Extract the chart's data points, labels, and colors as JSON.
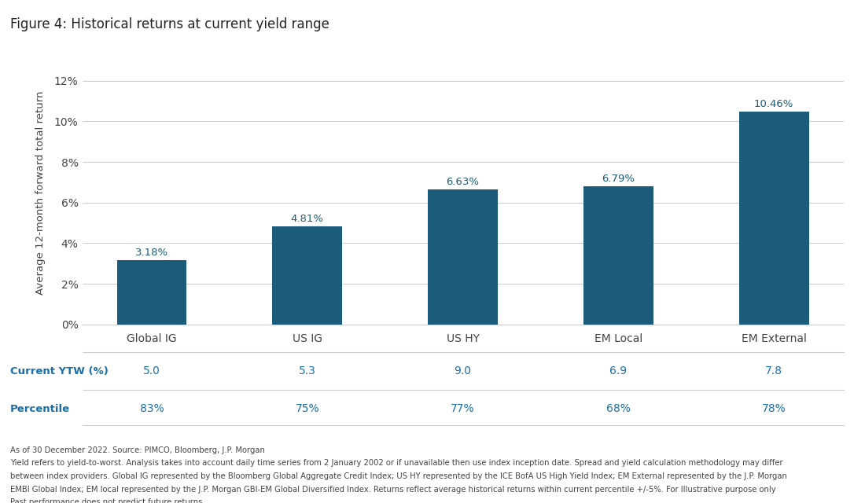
{
  "title": "Figure 4: Historical returns at current yield range",
  "categories": [
    "Global IG",
    "US IG",
    "US HY",
    "EM Local",
    "EM External"
  ],
  "values": [
    3.18,
    4.81,
    6.63,
    6.79,
    10.46
  ],
  "bar_color": "#1b5c7b",
  "ylabel": "Average 12-month forward total return",
  "ylim": [
    0,
    13
  ],
  "yticks": [
    0,
    2,
    4,
    6,
    8,
    10,
    12
  ],
  "ytick_labels": [
    "0%",
    "2%",
    "4%",
    "6%",
    "8%",
    "10%",
    "12%"
  ],
  "current_ytw_label": "Current YTW (%)",
  "current_ytw_values": [
    "5.0",
    "5.3",
    "9.0",
    "6.9",
    "7.8"
  ],
  "percentile_label": "Percentile",
  "percentile_values": [
    "83%",
    "75%",
    "77%",
    "68%",
    "78%"
  ],
  "table_header_color": "#1a6fa8",
  "table_value_color": "#1a6fa8",
  "bar_label_color": "#1b5c7b",
  "footnote_line1": "As of 30 December 2022. Source: PIMCO, Bloomberg, J.P. Morgan",
  "footnote_line2": "Yield refers to yield-to-worst. Analysis takes into account daily time series from 2 January 2002 or if unavailable then use index inception date. Spread and yield calculation methodology may differ",
  "footnote_line3": "between index providers. Global IG represented by the Bloomberg Global Aggregate Credit Index; US HY represented by the ICE BofA US High Yield Index; EM External represented by the J.P. Morgan",
  "footnote_line4": "EMBI Global Index; EM local represented by the J.P. Morgan GBI-EM Global Diversified Index. Returns reflect average historical returns within current percentile +/-5%. For Illustrative purpose only",
  "footnote_line5": "Past performance does not predict future returns",
  "background_color": "#ffffff",
  "grid_color": "#cccccc"
}
